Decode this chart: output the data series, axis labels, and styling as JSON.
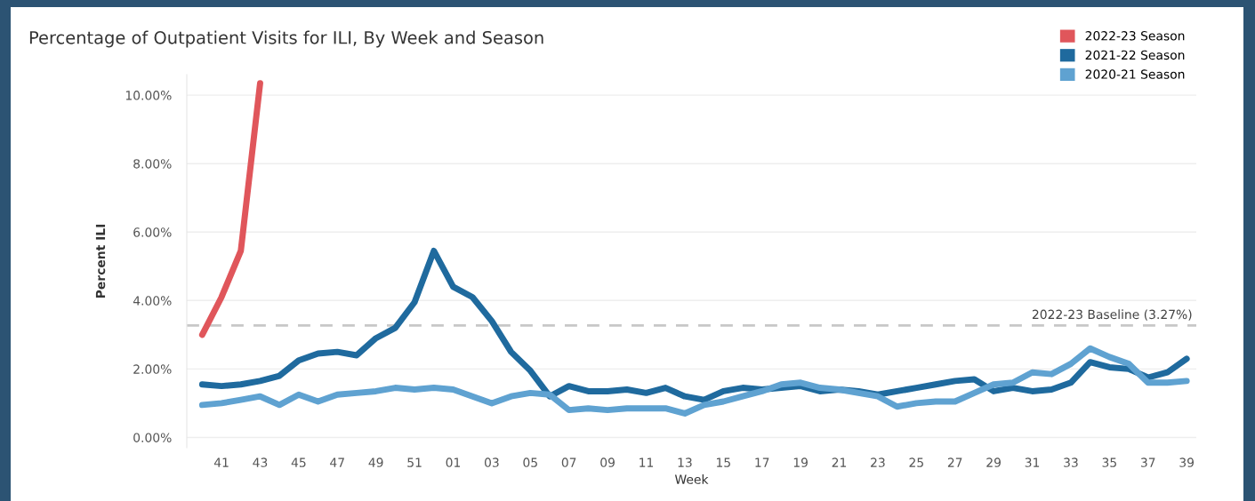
{
  "chart_data": {
    "type": "line",
    "title": "Percentage of Outpatient Visits for ILI, By Week and Season",
    "xlabel": "Week",
    "ylabel": "Percent ILI",
    "categories": [
      null,
      "41",
      null,
      "43",
      null,
      "45",
      null,
      "47",
      null,
      "49",
      null,
      "51",
      null,
      "01",
      null,
      "03",
      null,
      "05",
      null,
      "07",
      null,
      "09",
      null,
      "11",
      null,
      "13",
      null,
      "15",
      null,
      "17",
      null,
      "19",
      null,
      "21",
      null,
      "23",
      null,
      "25",
      null,
      "27",
      null,
      "29",
      null,
      "31",
      null,
      "33",
      null,
      "35",
      null,
      "37",
      null,
      "39"
    ],
    "series": [
      {
        "name": "2022-23 Season",
        "color": "#e0565b",
        "values": [
          3.0,
          4.1,
          5.45,
          10.35,
          null,
          null,
          null,
          null,
          null,
          null,
          null,
          null,
          null,
          null,
          null,
          null,
          null,
          null,
          null,
          null,
          null,
          null,
          null,
          null,
          null,
          null,
          null,
          null,
          null,
          null,
          null,
          null,
          null,
          null,
          null,
          null,
          null,
          null,
          null,
          null,
          null,
          null,
          null,
          null,
          null,
          null,
          null,
          null,
          null,
          null,
          null,
          null
        ]
      },
      {
        "name": "2021-22 Season",
        "color": "#1f6a9e",
        "values": [
          1.55,
          1.5,
          1.55,
          1.65,
          1.8,
          2.25,
          2.45,
          2.5,
          2.4,
          2.9,
          3.2,
          3.95,
          5.45,
          4.4,
          4.1,
          3.4,
          2.5,
          1.95,
          1.2,
          1.5,
          1.35,
          1.35,
          1.4,
          1.3,
          1.45,
          1.2,
          1.1,
          1.35,
          1.45,
          1.4,
          1.45,
          1.5,
          1.35,
          1.4,
          1.35,
          1.25,
          1.35,
          1.45,
          1.55,
          1.65,
          1.7,
          1.35,
          1.45,
          1.35,
          1.4,
          1.6,
          2.2,
          2.05,
          2.0,
          1.75,
          1.9,
          2.3
        ]
      },
      {
        "name": "2020-21 Season",
        "color": "#5fa2d1",
        "values": [
          0.95,
          1.0,
          1.1,
          1.2,
          0.95,
          1.25,
          1.05,
          1.25,
          1.3,
          1.35,
          1.45,
          1.4,
          1.45,
          1.4,
          1.2,
          1.0,
          1.2,
          1.3,
          1.25,
          0.8,
          0.85,
          0.8,
          0.85,
          0.85,
          0.85,
          0.7,
          0.95,
          1.05,
          1.2,
          1.35,
          1.55,
          1.6,
          1.45,
          1.4,
          1.3,
          1.2,
          0.9,
          1.0,
          1.05,
          1.05,
          1.3,
          1.55,
          1.6,
          1.9,
          1.85,
          2.15,
          2.6,
          2.35,
          2.15,
          1.6,
          1.6,
          1.65
        ]
      }
    ],
    "ylim": [
      -0.3,
      10.6
    ],
    "yticks": [
      {
        "value": 0,
        "label": "0.00%"
      },
      {
        "value": 2,
        "label": "2.00%"
      },
      {
        "value": 4,
        "label": "4.00%"
      },
      {
        "value": 6,
        "label": "6.00%"
      },
      {
        "value": 8,
        "label": "8.00%"
      },
      {
        "value": 10,
        "label": "10.00%"
      }
    ],
    "ref_lines": [
      {
        "axis": "y",
        "value": 3.27,
        "label": "2022-23 Baseline (3.27%)",
        "color": "#c8c8c8",
        "line_style": "dashed"
      }
    ],
    "grid": "y",
    "legend": "top right",
    "marker": "none",
    "line_style": "solid"
  }
}
